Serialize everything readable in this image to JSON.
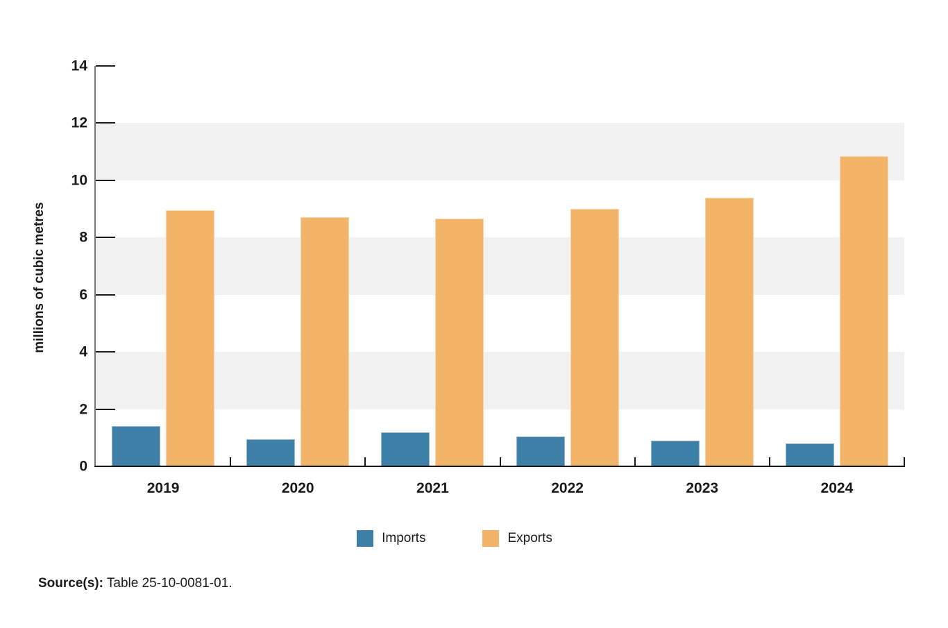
{
  "chart_data": {
    "type": "bar",
    "title": "",
    "categories": [
      "2019",
      "2020",
      "2021",
      "2022",
      "2023",
      "2024"
    ],
    "series": [
      {
        "name": "Imports",
        "color": "#3D7FA6",
        "values": [
          1.4,
          0.95,
          1.2,
          1.05,
          0.9,
          0.8
        ]
      },
      {
        "name": "Exports",
        "color": "#F2B469",
        "values": [
          8.95,
          8.7,
          8.65,
          9.0,
          9.4,
          10.85
        ]
      }
    ],
    "xlabel": "",
    "ylabel": "millions of cubic metres",
    "ylim": [
      0,
      14
    ],
    "y_ticks": [
      0,
      2,
      4,
      6,
      8,
      10,
      12,
      14
    ],
    "grid": "alternating-bands",
    "bands": [
      [
        2,
        4
      ],
      [
        6,
        8
      ],
      [
        10,
        12
      ]
    ],
    "band_color": "#f1f1f1",
    "legend_position": "bottom",
    "axis_colors": {
      "y_axis_line": "#757575",
      "x_axis_line": "#1a1a1a",
      "tick": "#1a1a1a"
    }
  },
  "source": {
    "label": "Source(s):",
    "text": " Table 25-10-0081-01."
  }
}
